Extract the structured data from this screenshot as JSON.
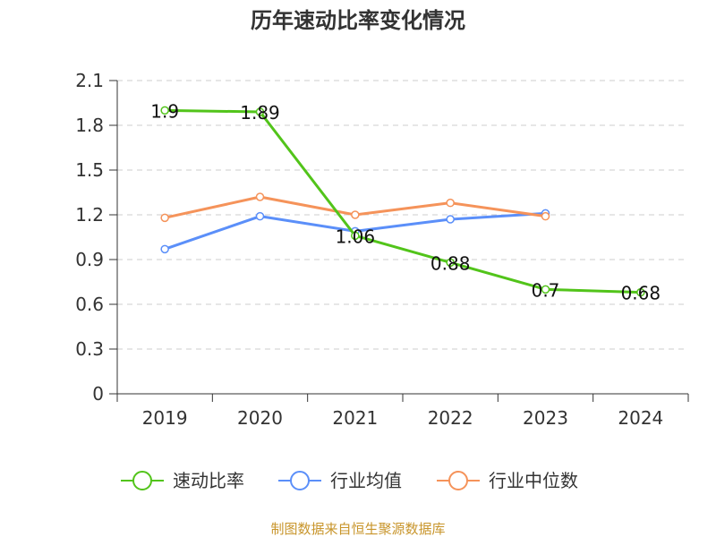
{
  "chart_data": {
    "type": "line",
    "title": "历年速动比率变化情况",
    "xlabel": "",
    "ylabel": "",
    "categories": [
      "2019",
      "2020",
      "2021",
      "2022",
      "2023",
      "2024"
    ],
    "ylim": [
      0,
      2.1
    ],
    "yticks": [
      "0",
      "0.3",
      "0.6",
      "0.9",
      "1.2",
      "1.5",
      "1.8",
      "2.1"
    ],
    "grid": true,
    "legend_position": "bottom",
    "series": [
      {
        "name": "速动比率",
        "color": "#52c41a",
        "values": [
          1.9,
          1.89,
          1.06,
          0.88,
          0.7,
          0.68
        ],
        "labels": [
          "1.9",
          "1.89",
          "1.06",
          "0.88",
          "0.7",
          "0.68"
        ]
      },
      {
        "name": "行业均值",
        "color": "#5b8ff9",
        "values": [
          0.97,
          1.19,
          1.09,
          1.17,
          1.21,
          null
        ]
      },
      {
        "name": "行业中位数",
        "color": "#f5935a",
        "values": [
          1.18,
          1.32,
          1.2,
          1.28,
          1.19,
          null
        ]
      }
    ]
  },
  "source_note": "制图数据来自恒生聚源数据库",
  "source_color": "#c8952b"
}
